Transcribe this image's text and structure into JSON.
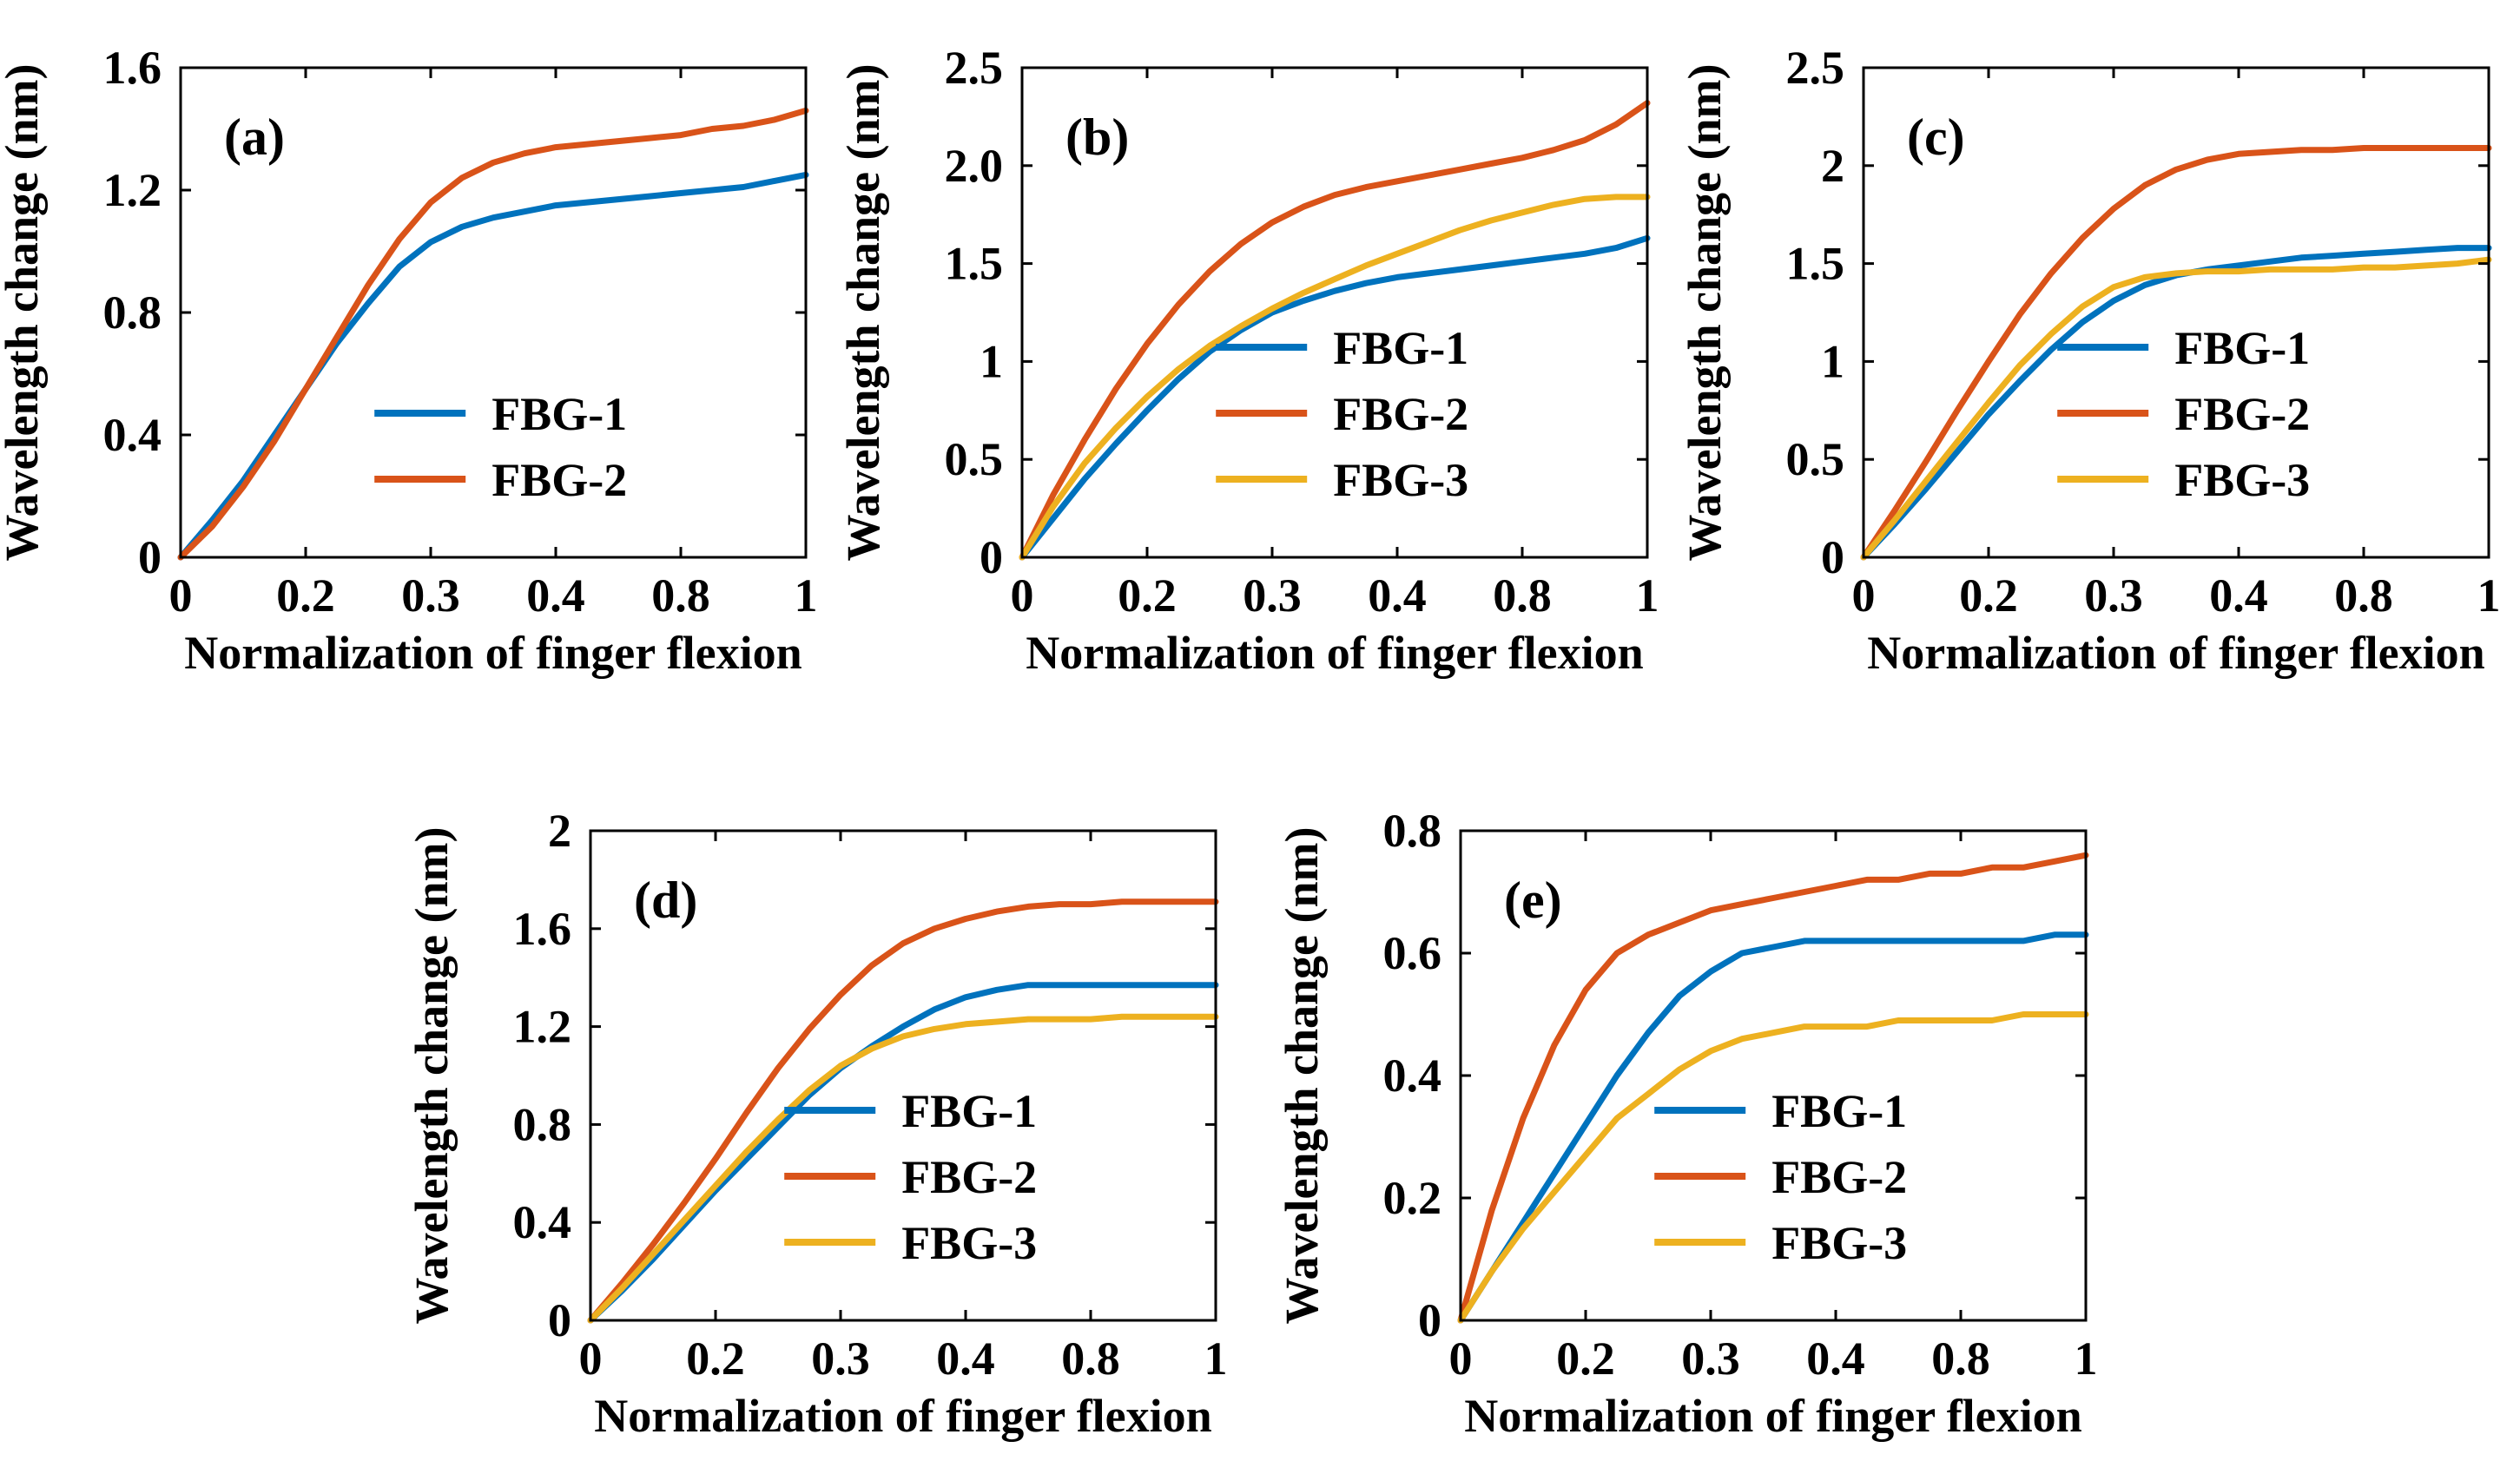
{
  "figure": {
    "colors": {
      "FBG-1": "#0072BD",
      "FBG-2": "#D95319",
      "FBG-3": "#EDB120"
    }
  },
  "chart_data": [
    {
      "type": "line",
      "panel": "(a)",
      "xlabel": "Normalization of finger flexion",
      "ylabel": "Wavelength change (nm)",
      "x_tick_labels": [
        "0",
        "0.2",
        "0.3",
        "0.4",
        "0.8",
        "1"
      ],
      "ylim": [
        0,
        1.6
      ],
      "y_ticks": [
        0,
        0.4,
        0.8,
        1.2,
        1.6
      ],
      "y_tick_labels": [
        "0",
        "0.4",
        "0.8",
        "1.2",
        "1.6"
      ],
      "legend_position": "lower-right",
      "x": [
        0,
        0.05,
        0.1,
        0.15,
        0.2,
        0.25,
        0.3,
        0.35,
        0.4,
        0.45,
        0.5,
        0.55,
        0.6,
        0.65,
        0.7,
        0.75,
        0.8,
        0.85,
        0.9,
        0.95,
        1
      ],
      "series": [
        {
          "name": "FBG-1",
          "values": [
            0,
            0.12,
            0.25,
            0.4,
            0.55,
            0.7,
            0.83,
            0.95,
            1.03,
            1.08,
            1.11,
            1.13,
            1.15,
            1.16,
            1.17,
            1.18,
            1.19,
            1.2,
            1.21,
            1.23,
            1.25
          ]
        },
        {
          "name": "FBG-2",
          "values": [
            0,
            0.1,
            0.23,
            0.38,
            0.55,
            0.72,
            0.89,
            1.04,
            1.16,
            1.24,
            1.29,
            1.32,
            1.34,
            1.35,
            1.36,
            1.37,
            1.38,
            1.4,
            1.41,
            1.43,
            1.46
          ]
        }
      ]
    },
    {
      "type": "line",
      "panel": "(b)",
      "xlabel": "Normalization of finger flexion",
      "ylabel": "Wavelength change (nm)",
      "x_tick_labels": [
        "0",
        "0.2",
        "0.3",
        "0.4",
        "0.8",
        "1"
      ],
      "ylim": [
        0,
        2.5
      ],
      "y_ticks": [
        0,
        0.5,
        1,
        1.5,
        2,
        2.5
      ],
      "y_tick_labels": [
        "0",
        "0.5",
        "1",
        "1.5",
        "2.0",
        "2.5"
      ],
      "legend_position": "lower-right",
      "x": [
        0,
        0.05,
        0.1,
        0.15,
        0.2,
        0.25,
        0.3,
        0.35,
        0.4,
        0.45,
        0.5,
        0.55,
        0.6,
        0.65,
        0.7,
        0.75,
        0.8,
        0.85,
        0.9,
        0.95,
        1
      ],
      "series": [
        {
          "name": "FBG-1",
          "values": [
            0,
            0.2,
            0.4,
            0.58,
            0.75,
            0.91,
            1.05,
            1.16,
            1.25,
            1.31,
            1.36,
            1.4,
            1.43,
            1.45,
            1.47,
            1.49,
            1.51,
            1.53,
            1.55,
            1.58,
            1.63
          ]
        },
        {
          "name": "FBG-2",
          "values": [
            0,
            0.32,
            0.6,
            0.86,
            1.09,
            1.29,
            1.46,
            1.6,
            1.71,
            1.79,
            1.85,
            1.89,
            1.92,
            1.95,
            1.98,
            2.01,
            2.04,
            2.08,
            2.13,
            2.21,
            2.32
          ]
        },
        {
          "name": "FBG-3",
          "values": [
            0,
            0.26,
            0.48,
            0.66,
            0.82,
            0.96,
            1.08,
            1.18,
            1.27,
            1.35,
            1.42,
            1.49,
            1.55,
            1.61,
            1.67,
            1.72,
            1.76,
            1.8,
            1.83,
            1.84,
            1.84
          ]
        }
      ]
    },
    {
      "type": "line",
      "panel": "(c)",
      "xlabel": "Normalization of finger flexion",
      "ylabel": "Wavelength change (nm)",
      "x_tick_labels": [
        "0",
        "0.2",
        "0.3",
        "0.4",
        "0.8",
        "1"
      ],
      "ylim": [
        0,
        2.5
      ],
      "y_ticks": [
        0,
        0.5,
        1,
        1.5,
        2,
        2.5
      ],
      "y_tick_labels": [
        "0",
        "0.5",
        "1",
        "1.5",
        "2",
        "2.5"
      ],
      "legend_position": "lower-right",
      "x": [
        0,
        0.05,
        0.1,
        0.15,
        0.2,
        0.25,
        0.3,
        0.35,
        0.4,
        0.45,
        0.5,
        0.55,
        0.6,
        0.65,
        0.7,
        0.75,
        0.8,
        0.85,
        0.9,
        0.95,
        1
      ],
      "series": [
        {
          "name": "FBG-1",
          "values": [
            0,
            0.17,
            0.35,
            0.54,
            0.73,
            0.9,
            1.06,
            1.2,
            1.31,
            1.39,
            1.44,
            1.47,
            1.49,
            1.51,
            1.53,
            1.54,
            1.55,
            1.56,
            1.57,
            1.58,
            1.58
          ]
        },
        {
          "name": "FBG-2",
          "values": [
            0,
            0.24,
            0.49,
            0.75,
            1.0,
            1.24,
            1.45,
            1.63,
            1.78,
            1.9,
            1.98,
            2.03,
            2.06,
            2.07,
            2.08,
            2.08,
            2.09,
            2.09,
            2.09,
            2.09,
            2.09
          ]
        },
        {
          "name": "FBG-3",
          "values": [
            0,
            0.19,
            0.39,
            0.59,
            0.79,
            0.98,
            1.14,
            1.28,
            1.38,
            1.43,
            1.45,
            1.46,
            1.46,
            1.47,
            1.47,
            1.47,
            1.48,
            1.48,
            1.49,
            1.5,
            1.52
          ]
        }
      ]
    },
    {
      "type": "line",
      "panel": "(d)",
      "xlabel": "Normalization of finger flexion",
      "ylabel": "Wavelength change (nm)",
      "x_tick_labels": [
        "0",
        "0.2",
        "0.3",
        "0.4",
        "0.8",
        "1"
      ],
      "ylim": [
        0,
        2
      ],
      "y_ticks": [
        0,
        0.4,
        0.8,
        1.2,
        1.6,
        2
      ],
      "y_tick_labels": [
        "0",
        "0.4",
        "0.8",
        "1.2",
        "1.6",
        "2"
      ],
      "legend_position": "lower-right",
      "x": [
        0,
        0.05,
        0.1,
        0.15,
        0.2,
        0.25,
        0.3,
        0.35,
        0.4,
        0.45,
        0.5,
        0.55,
        0.6,
        0.65,
        0.7,
        0.75,
        0.8,
        0.85,
        0.9,
        0.95,
        1
      ],
      "series": [
        {
          "name": "FBG-1",
          "values": [
            0,
            0.12,
            0.25,
            0.39,
            0.53,
            0.66,
            0.79,
            0.92,
            1.03,
            1.12,
            1.2,
            1.27,
            1.32,
            1.35,
            1.37,
            1.37,
            1.37,
            1.37,
            1.37,
            1.37,
            1.37
          ]
        },
        {
          "name": "FBG-2",
          "values": [
            0,
            0.15,
            0.31,
            0.48,
            0.66,
            0.85,
            1.03,
            1.19,
            1.33,
            1.45,
            1.54,
            1.6,
            1.64,
            1.67,
            1.69,
            1.7,
            1.7,
            1.71,
            1.71,
            1.71,
            1.71
          ]
        },
        {
          "name": "FBG-3",
          "values": [
            0,
            0.13,
            0.27,
            0.41,
            0.55,
            0.69,
            0.82,
            0.94,
            1.04,
            1.11,
            1.16,
            1.19,
            1.21,
            1.22,
            1.23,
            1.23,
            1.23,
            1.24,
            1.24,
            1.24,
            1.24
          ]
        }
      ]
    },
    {
      "type": "line",
      "panel": "(e)",
      "xlabel": "Normalization of finger flexion",
      "ylabel": "Wavelength change (nm)",
      "x_tick_labels": [
        "0",
        "0.2",
        "0.3",
        "0.4",
        "0.8",
        "1"
      ],
      "ylim": [
        0,
        0.8
      ],
      "y_ticks": [
        0,
        0.2,
        0.4,
        0.6,
        0.8
      ],
      "y_tick_labels": [
        "0",
        "0.2",
        "0.4",
        "0.6",
        "0.8"
      ],
      "legend_position": "lower-right",
      "x": [
        0,
        0.05,
        0.1,
        0.15,
        0.2,
        0.25,
        0.3,
        0.35,
        0.4,
        0.45,
        0.5,
        0.55,
        0.6,
        0.65,
        0.7,
        0.75,
        0.8,
        0.85,
        0.9,
        0.95,
        1
      ],
      "series": [
        {
          "name": "FBG-1",
          "values": [
            0,
            0.08,
            0.16,
            0.24,
            0.32,
            0.4,
            0.47,
            0.53,
            0.57,
            0.6,
            0.61,
            0.62,
            0.62,
            0.62,
            0.62,
            0.62,
            0.62,
            0.62,
            0.62,
            0.63,
            0.63
          ]
        },
        {
          "name": "FBG-2",
          "values": [
            0,
            0.18,
            0.33,
            0.45,
            0.54,
            0.6,
            0.63,
            0.65,
            0.67,
            0.68,
            0.69,
            0.7,
            0.71,
            0.72,
            0.72,
            0.73,
            0.73,
            0.74,
            0.74,
            0.75,
            0.76
          ]
        },
        {
          "name": "FBG-3",
          "values": [
            0,
            0.08,
            0.15,
            0.21,
            0.27,
            0.33,
            0.37,
            0.41,
            0.44,
            0.46,
            0.47,
            0.48,
            0.48,
            0.48,
            0.49,
            0.49,
            0.49,
            0.49,
            0.5,
            0.5,
            0.5
          ]
        }
      ]
    }
  ]
}
